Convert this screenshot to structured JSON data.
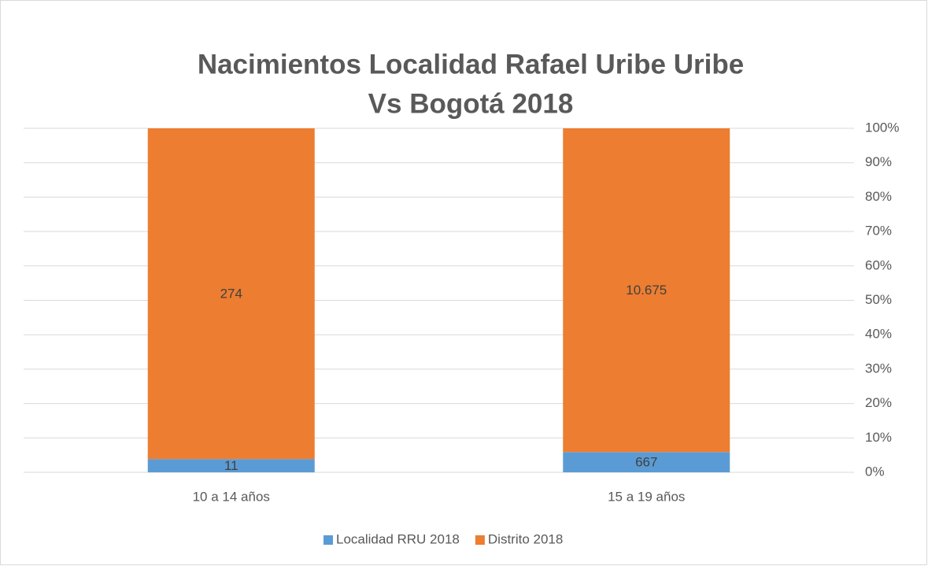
{
  "chart_data": {
    "type": "bar",
    "stacking": "percent",
    "title": [
      "Nacimientos Localidad Rafael Uribe Uribe",
      "Vs Bogotá 2018"
    ],
    "categories": [
      "10 a 14 años",
      "15 a 19 años"
    ],
    "series": [
      {
        "name": "Localidad RRU 2018",
        "color": "#5b9bd5",
        "values": [
          11,
          667
        ]
      },
      {
        "name": "Distrito 2018",
        "color": "#ed7d31",
        "values": [
          274,
          10675
        ],
        "value_labels": [
          "274",
          "10.675"
        ]
      }
    ],
    "ylim": [
      0,
      100
    ],
    "yticks": [
      {
        "value": 0,
        "label": "0%"
      },
      {
        "value": 10,
        "label": "10%"
      },
      {
        "value": 20,
        "label": "20%"
      },
      {
        "value": 30,
        "label": "30%"
      },
      {
        "value": 40,
        "label": "40%"
      },
      {
        "value": 50,
        "label": "50%"
      },
      {
        "value": 60,
        "label": "60%"
      },
      {
        "value": 70,
        "label": "70%"
      },
      {
        "value": 80,
        "label": "80%"
      },
      {
        "value": 90,
        "label": "90%"
      },
      {
        "value": 100,
        "label": "100%"
      }
    ],
    "yaxis_side": "right",
    "grid": true,
    "legend": "bottom"
  }
}
